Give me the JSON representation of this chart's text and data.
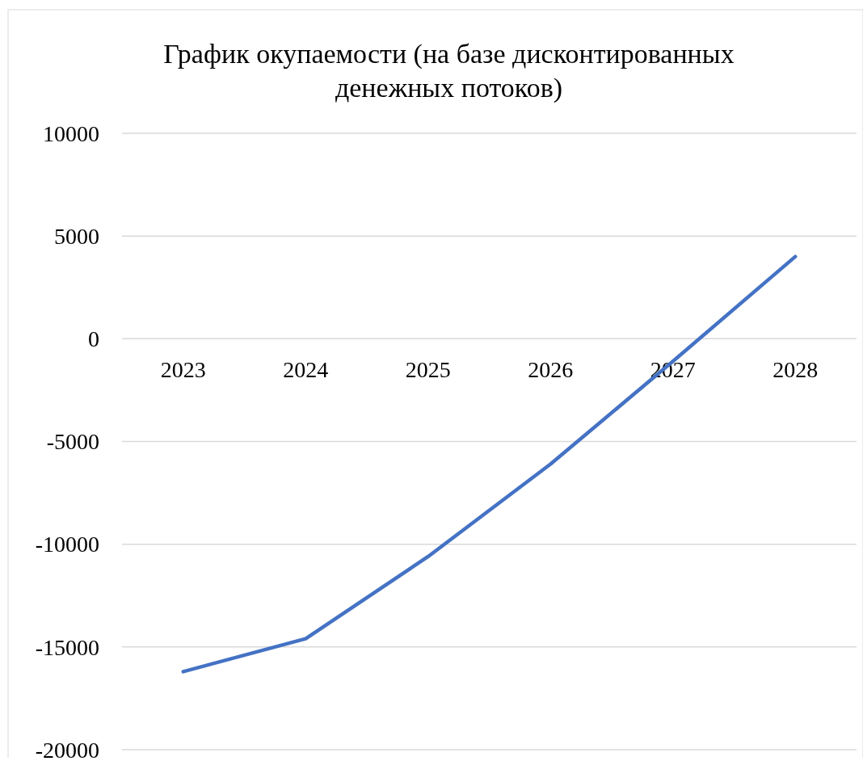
{
  "chart_data": {
    "type": "line",
    "title": "График окупаемости (на базе дисконтированных денежных потоков)",
    "categories": [
      "2023",
      "2024",
      "2025",
      "2026",
      "2027",
      "2028"
    ],
    "series": [
      {
        "color": "#4472c4",
        "values": [
          -16200,
          -14600,
          -10600,
          -6100,
          -1100,
          4000
        ]
      }
    ],
    "ylim": [
      -20000,
      10000
    ],
    "yticks": [
      -20000,
      -15000,
      -10000,
      -5000,
      0,
      5000,
      10000
    ],
    "grid": "y",
    "marker": "none",
    "line_style": "solid"
  }
}
